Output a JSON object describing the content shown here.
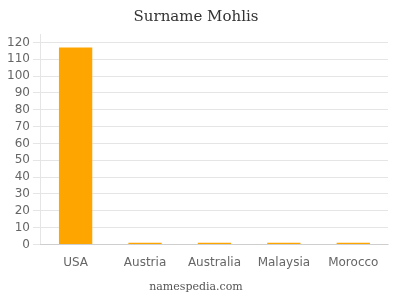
{
  "chart_data": {
    "type": "bar",
    "title": "Surname Mohlis",
    "annotations": [
      "namespedia.com"
    ],
    "categories": [
      "USA",
      "Austria",
      "Australia",
      "Malaysia",
      "Morocco"
    ],
    "values": [
      117,
      1,
      1,
      1,
      1
    ],
    "color": "#FFA500",
    "ylim": [
      0,
      125
    ],
    "yticks": [
      0,
      10,
      20,
      30,
      40,
      50,
      60,
      70,
      80,
      90,
      100,
      110,
      120
    ],
    "grid": true
  }
}
